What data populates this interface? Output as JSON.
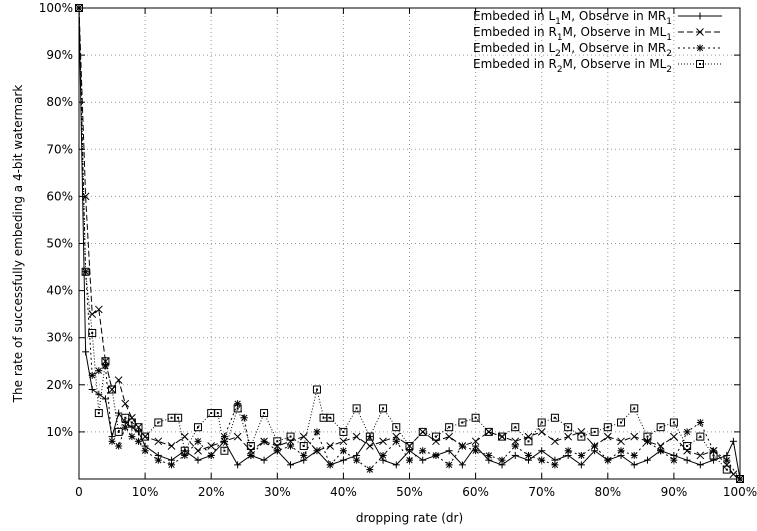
{
  "chart_data": {
    "type": "line",
    "title": "",
    "xlabel": "dropping rate (dr)",
    "ylabel": "The rate of successfully embeding a 4-bit watermark",
    "xlim": [
      0,
      100
    ],
    "ylim": [
      0,
      100
    ],
    "x_ticks": [
      "0",
      "10%",
      "20%",
      "30%",
      "40%",
      "50%",
      "60%",
      "70%",
      "80%",
      "90%",
      "100%"
    ],
    "y_ticks": [
      "10%",
      "20%",
      "30%",
      "40%",
      "50%",
      "60%",
      "70%",
      "80%",
      "90%",
      "100%"
    ],
    "grid": true,
    "legend_position": "top-right",
    "series": [
      {
        "name": "Embeded in L1M, Observe in MR1",
        "name_parts": [
          "Embeded in L",
          "1",
          "M, Observe in MR",
          "1"
        ],
        "marker": "plus",
        "dash": "none",
        "x": [
          0,
          1,
          2,
          3,
          4,
          5,
          6,
          7,
          8,
          9,
          10,
          12,
          14,
          16,
          18,
          20,
          22,
          24,
          26,
          28,
          30,
          32,
          34,
          36,
          38,
          40,
          42,
          44,
          46,
          48,
          50,
          52,
          54,
          56,
          58,
          60,
          62,
          64,
          66,
          68,
          70,
          72,
          74,
          76,
          78,
          80,
          82,
          84,
          86,
          88,
          90,
          92,
          94,
          96,
          98,
          99,
          100
        ],
        "y": [
          100,
          27,
          19,
          18,
          17,
          9,
          14,
          12,
          11,
          10,
          7,
          5,
          4,
          6,
          4,
          5,
          8,
          3,
          5,
          4,
          6,
          3,
          4,
          6,
          3,
          4,
          5,
          9,
          4,
          3,
          6,
          4,
          5,
          6,
          3,
          7,
          4,
          3,
          5,
          4,
          6,
          4,
          5,
          3,
          6,
          4,
          5,
          3,
          4,
          6,
          5,
          4,
          3,
          4,
          5,
          8,
          0
        ]
      },
      {
        "name": "Embeded in R1M, Observe in ML1",
        "name_parts": [
          "Embeded in R",
          "1",
          "M, Observe in ML",
          "1"
        ],
        "marker": "cross",
        "dash": "6 3",
        "x": [
          0,
          1,
          2,
          3,
          4,
          5,
          6,
          7,
          8,
          9,
          10,
          12,
          14,
          16,
          18,
          20,
          22,
          24,
          26,
          28,
          30,
          32,
          34,
          36,
          38,
          40,
          42,
          44,
          46,
          48,
          50,
          52,
          54,
          56,
          58,
          60,
          62,
          64,
          66,
          68,
          70,
          72,
          74,
          76,
          78,
          80,
          82,
          84,
          86,
          88,
          90,
          92,
          94,
          96,
          98,
          99,
          100
        ],
        "y": [
          100,
          60,
          35,
          36,
          25,
          19,
          21,
          16,
          13,
          11,
          9,
          8,
          7,
          9,
          6,
          7,
          8,
          9,
          6,
          8,
          7,
          8,
          9,
          6,
          7,
          8,
          9,
          7,
          8,
          9,
          7,
          10,
          8,
          9,
          7,
          8,
          10,
          9,
          8,
          9,
          10,
          8,
          9,
          10,
          7,
          9,
          8,
          9,
          8,
          7,
          9,
          6,
          5,
          6,
          3,
          1,
          0
        ]
      },
      {
        "name": "Embeded in L2M, Observe in MR2",
        "name_parts": [
          "Embeded in L",
          "2",
          "M, Observe in MR",
          "2"
        ],
        "marker": "star",
        "dash": "2 3",
        "x": [
          0,
          1,
          2,
          3,
          4,
          5,
          6,
          7,
          8,
          9,
          10,
          12,
          14,
          16,
          18,
          20,
          22,
          24,
          25,
          26,
          28,
          30,
          32,
          34,
          36,
          38,
          40,
          42,
          44,
          46,
          48,
          50,
          52,
          54,
          56,
          58,
          60,
          62,
          64,
          66,
          68,
          70,
          72,
          74,
          76,
          78,
          80,
          82,
          84,
          86,
          88,
          90,
          92,
          94,
          96,
          98,
          100
        ],
        "y": [
          100,
          44,
          22,
          23,
          24,
          8,
          7,
          11,
          9,
          8,
          6,
          4,
          3,
          5,
          8,
          5,
          9,
          16,
          13,
          5,
          8,
          6,
          7,
          5,
          10,
          3,
          6,
          4,
          2,
          5,
          8,
          4,
          6,
          5,
          3,
          7,
          6,
          5,
          4,
          7,
          5,
          4,
          3,
          6,
          5,
          7,
          4,
          6,
          5,
          8,
          6,
          4,
          10,
          12,
          6,
          4,
          0
        ]
      },
      {
        "name": "Embeded in R2M, Observe in ML2",
        "name_parts": [
          "Embeded in R",
          "2",
          "M, Observe in ML",
          "2"
        ],
        "marker": "box",
        "dash": "1 2",
        "x": [
          0,
          1,
          2,
          3,
          4,
          5,
          6,
          7,
          8,
          9,
          10,
          12,
          14,
          15,
          16,
          18,
          20,
          21,
          22,
          24,
          26,
          28,
          30,
          32,
          34,
          36,
          37,
          38,
          40,
          42,
          44,
          46,
          48,
          50,
          52,
          54,
          56,
          58,
          60,
          62,
          64,
          66,
          68,
          70,
          72,
          74,
          76,
          78,
          80,
          82,
          84,
          86,
          88,
          90,
          92,
          94,
          96,
          98,
          100
        ],
        "y": [
          100,
          44,
          31,
          14,
          25,
          19,
          10,
          13,
          12,
          11,
          9,
          12,
          13,
          13,
          6,
          11,
          14,
          14,
          6,
          15,
          7,
          14,
          8,
          9,
          7,
          19,
          13,
          13,
          10,
          15,
          9,
          15,
          11,
          7,
          10,
          9,
          11,
          12,
          13,
          10,
          9,
          11,
          8,
          12,
          13,
          11,
          9,
          10,
          11,
          12,
          15,
          9,
          11,
          12,
          7,
          9,
          5,
          2,
          0
        ]
      }
    ]
  }
}
